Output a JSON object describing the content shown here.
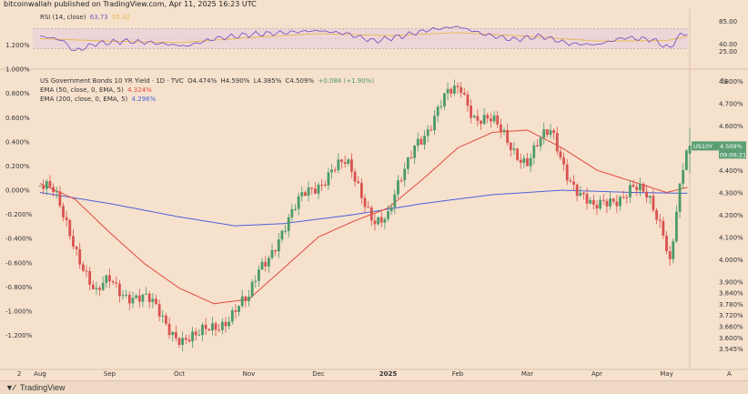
{
  "header": {
    "published_by": "bitcoinwallah published on TradingView.com, Apr 11, 2025 16:23 UTC"
  },
  "footer": {
    "brand": "TradingView"
  },
  "colors": {
    "up": "#4c9a6a",
    "down": "#d9534f",
    "ema50": "#e04b3c",
    "ema200": "#4a62d8",
    "rsi": "#7e57c2",
    "rsi_ma": "#e6b84a",
    "badge": "#5b9e74"
  },
  "rsi_panel": {
    "label": "RSI (14, close)",
    "value": "63.73",
    "ma_value": "55.02",
    "axis_labels": [
      "85.00",
      "40.00",
      "25.00"
    ]
  },
  "main_legend": {
    "symbol_line": "US Government Bonds 10 YR Yield · 1D · TVC",
    "open": "O4.474%",
    "high": "H4.590%",
    "low": "L4.385%",
    "close": "C4.509%",
    "change": "+0.084 (+1.90%)",
    "ema50_label": "EMA (50, close, 0, EMA, 5)",
    "ema50_value": "4.324%",
    "ema200_label": "EMA (200, close, 0, EMA, 5)",
    "ema200_value": "4.296%"
  },
  "price_badge": {
    "symbol": "US10Y",
    "value": "4.509%",
    "countdown": "09:06:21"
  },
  "axis_corner": {
    "unit": "%",
    "bottom_right": "A"
  },
  "chart_data": {
    "type": "candlestick",
    "title": "US Government Bonds 10 YR Yield · 1D · TVC",
    "x_axis": {
      "labels": [
        "2",
        "Aug",
        "Sep",
        "Oct",
        "Nov",
        "Dec",
        "2025",
        "Feb",
        "Mar",
        "Apr",
        "May"
      ]
    },
    "left_axis": {
      "unit": "percent change",
      "ticks": [
        1.2,
        1.0,
        0.8,
        0.6,
        0.4,
        0.2,
        0.0,
        -0.2,
        -0.4,
        -0.6,
        -0.8,
        -1.0,
        -1.2
      ],
      "tick_labels": [
        "1.200%",
        "1.000%",
        "0.800%",
        "0.600%",
        "0.400%",
        "0.200%",
        "0.000%",
        "-0.200%",
        "-0.400%",
        "-0.600%",
        "-0.800%",
        "-1.000%",
        "-1.200%"
      ]
    },
    "right_axis": {
      "unit": "yield %",
      "tick_labels": [
        "4.800%",
        "4.700%",
        "4.600%",
        "4.500%",
        "4.400%",
        "4.300%",
        "4.200%",
        "4.100%",
        "4.000%",
        "3.900%",
        "3.840%",
        "3.780%",
        "3.720%",
        "3.660%",
        "3.600%",
        "3.545%"
      ],
      "ylim": [
        3.545,
        4.85
      ]
    },
    "anchors": [
      {
        "month": 0,
        "value": 4.33
      },
      {
        "month": 0.2,
        "value": 4.28
      },
      {
        "month": 0.45,
        "value": 4.12
      },
      {
        "month": 0.62,
        "value": 3.98
      },
      {
        "month": 0.8,
        "value": 3.82
      },
      {
        "month": 1.0,
        "value": 3.9
      },
      {
        "month": 1.3,
        "value": 3.85
      },
      {
        "month": 1.55,
        "value": 3.8
      },
      {
        "month": 1.8,
        "value": 3.72
      },
      {
        "month": 2.05,
        "value": 3.65
      },
      {
        "month": 2.25,
        "value": 3.63
      },
      {
        "month": 2.5,
        "value": 3.7
      },
      {
        "month": 2.8,
        "value": 3.78
      },
      {
        "month": 3.0,
        "value": 3.8
      },
      {
        "month": 3.15,
        "value": 3.95
      },
      {
        "month": 3.4,
        "value": 4.1
      },
      {
        "month": 3.6,
        "value": 4.18
      },
      {
        "month": 3.8,
        "value": 4.28
      },
      {
        "month": 4.0,
        "value": 4.35
      },
      {
        "month": 4.2,
        "value": 4.42
      },
      {
        "month": 4.4,
        "value": 4.41
      },
      {
        "month": 4.6,
        "value": 4.3
      },
      {
        "month": 4.8,
        "value": 4.2
      },
      {
        "month": 5.0,
        "value": 4.18
      },
      {
        "month": 5.2,
        "value": 4.35
      },
      {
        "month": 5.4,
        "value": 4.55
      },
      {
        "month": 5.6,
        "value": 4.6
      },
      {
        "month": 5.85,
        "value": 4.72
      },
      {
        "month": 6.05,
        "value": 4.78
      },
      {
        "month": 6.25,
        "value": 4.65
      },
      {
        "month": 6.5,
        "value": 4.6
      },
      {
        "month": 6.75,
        "value": 4.52
      },
      {
        "month": 7.0,
        "value": 4.45
      },
      {
        "month": 7.2,
        "value": 4.52
      },
      {
        "month": 7.35,
        "value": 4.56
      },
      {
        "month": 7.55,
        "value": 4.42
      },
      {
        "month": 7.75,
        "value": 4.3
      },
      {
        "month": 7.95,
        "value": 4.2
      },
      {
        "month": 8.2,
        "value": 4.28
      },
      {
        "month": 8.5,
        "value": 4.32
      },
      {
        "month": 8.75,
        "value": 4.25
      },
      {
        "month": 8.95,
        "value": 4.15
      },
      {
        "month": 9.05,
        "value": 4.01
      },
      {
        "month": 9.15,
        "value": 4.25
      },
      {
        "month": 9.25,
        "value": 4.42
      },
      {
        "month": 9.32,
        "value": 4.509
      }
    ],
    "ema50": [
      {
        "month": 0,
        "value": 4.34
      },
      {
        "month": 0.5,
        "value": 4.27
      },
      {
        "month": 1.0,
        "value": 4.12
      },
      {
        "month": 1.5,
        "value": 3.98
      },
      {
        "month": 2.0,
        "value": 3.87
      },
      {
        "month": 2.5,
        "value": 3.8
      },
      {
        "month": 3.0,
        "value": 3.82
      },
      {
        "month": 3.5,
        "value": 3.96
      },
      {
        "month": 4.0,
        "value": 4.1
      },
      {
        "month": 4.5,
        "value": 4.17
      },
      {
        "month": 5.0,
        "value": 4.23
      },
      {
        "month": 5.5,
        "value": 4.36
      },
      {
        "month": 6.0,
        "value": 4.5
      },
      {
        "month": 6.5,
        "value": 4.57
      },
      {
        "month": 7.0,
        "value": 4.58
      },
      {
        "month": 7.5,
        "value": 4.5
      },
      {
        "month": 8.0,
        "value": 4.4
      },
      {
        "month": 8.5,
        "value": 4.35
      },
      {
        "month": 9.0,
        "value": 4.3
      },
      {
        "month": 9.32,
        "value": 4.324
      }
    ],
    "ema200": [
      {
        "month": 0,
        "value": 4.3
      },
      {
        "month": 1.0,
        "value": 4.25
      },
      {
        "month": 2.0,
        "value": 4.19
      },
      {
        "month": 2.8,
        "value": 4.15
      },
      {
        "month": 3.5,
        "value": 4.16
      },
      {
        "month": 4.5,
        "value": 4.2
      },
      {
        "month": 5.5,
        "value": 4.25
      },
      {
        "month": 6.5,
        "value": 4.29
      },
      {
        "month": 7.5,
        "value": 4.31
      },
      {
        "month": 8.5,
        "value": 4.3
      },
      {
        "month": 9.32,
        "value": 4.296
      }
    ],
    "rsi": {
      "range": [
        0,
        100
      ],
      "bands": [
        30,
        70
      ],
      "points": [
        {
          "month": 0,
          "value": 55
        },
        {
          "month": 0.3,
          "value": 48
        },
        {
          "month": 0.5,
          "value": 25
        },
        {
          "month": 0.8,
          "value": 40
        },
        {
          "month": 1.2,
          "value": 45
        },
        {
          "month": 1.6,
          "value": 42
        },
        {
          "month": 2.1,
          "value": 35
        },
        {
          "month": 2.5,
          "value": 50
        },
        {
          "month": 3.0,
          "value": 58
        },
        {
          "month": 3.5,
          "value": 62
        },
        {
          "month": 4.0,
          "value": 66
        },
        {
          "month": 4.4,
          "value": 60
        },
        {
          "month": 4.8,
          "value": 45
        },
        {
          "month": 5.2,
          "value": 55
        },
        {
          "month": 5.6,
          "value": 68
        },
        {
          "month": 6.0,
          "value": 74
        },
        {
          "month": 6.4,
          "value": 58
        },
        {
          "month": 6.8,
          "value": 48
        },
        {
          "month": 7.2,
          "value": 55
        },
        {
          "month": 7.6,
          "value": 40
        },
        {
          "month": 8.0,
          "value": 38
        },
        {
          "month": 8.4,
          "value": 52
        },
        {
          "month": 8.8,
          "value": 48
        },
        {
          "month": 9.05,
          "value": 30
        },
        {
          "month": 9.15,
          "value": 52
        },
        {
          "month": 9.32,
          "value": 63.73
        }
      ],
      "ma": [
        {
          "month": 0,
          "value": 50
        },
        {
          "month": 1.0,
          "value": 45
        },
        {
          "month": 2.0,
          "value": 42
        },
        {
          "month": 3.0,
          "value": 52
        },
        {
          "month": 4.0,
          "value": 60
        },
        {
          "month": 5.0,
          "value": 56
        },
        {
          "month": 6.0,
          "value": 62
        },
        {
          "month": 7.0,
          "value": 55
        },
        {
          "month": 8.0,
          "value": 45
        },
        {
          "month": 9.0,
          "value": 46
        },
        {
          "month": 9.32,
          "value": 55.02
        }
      ]
    }
  }
}
